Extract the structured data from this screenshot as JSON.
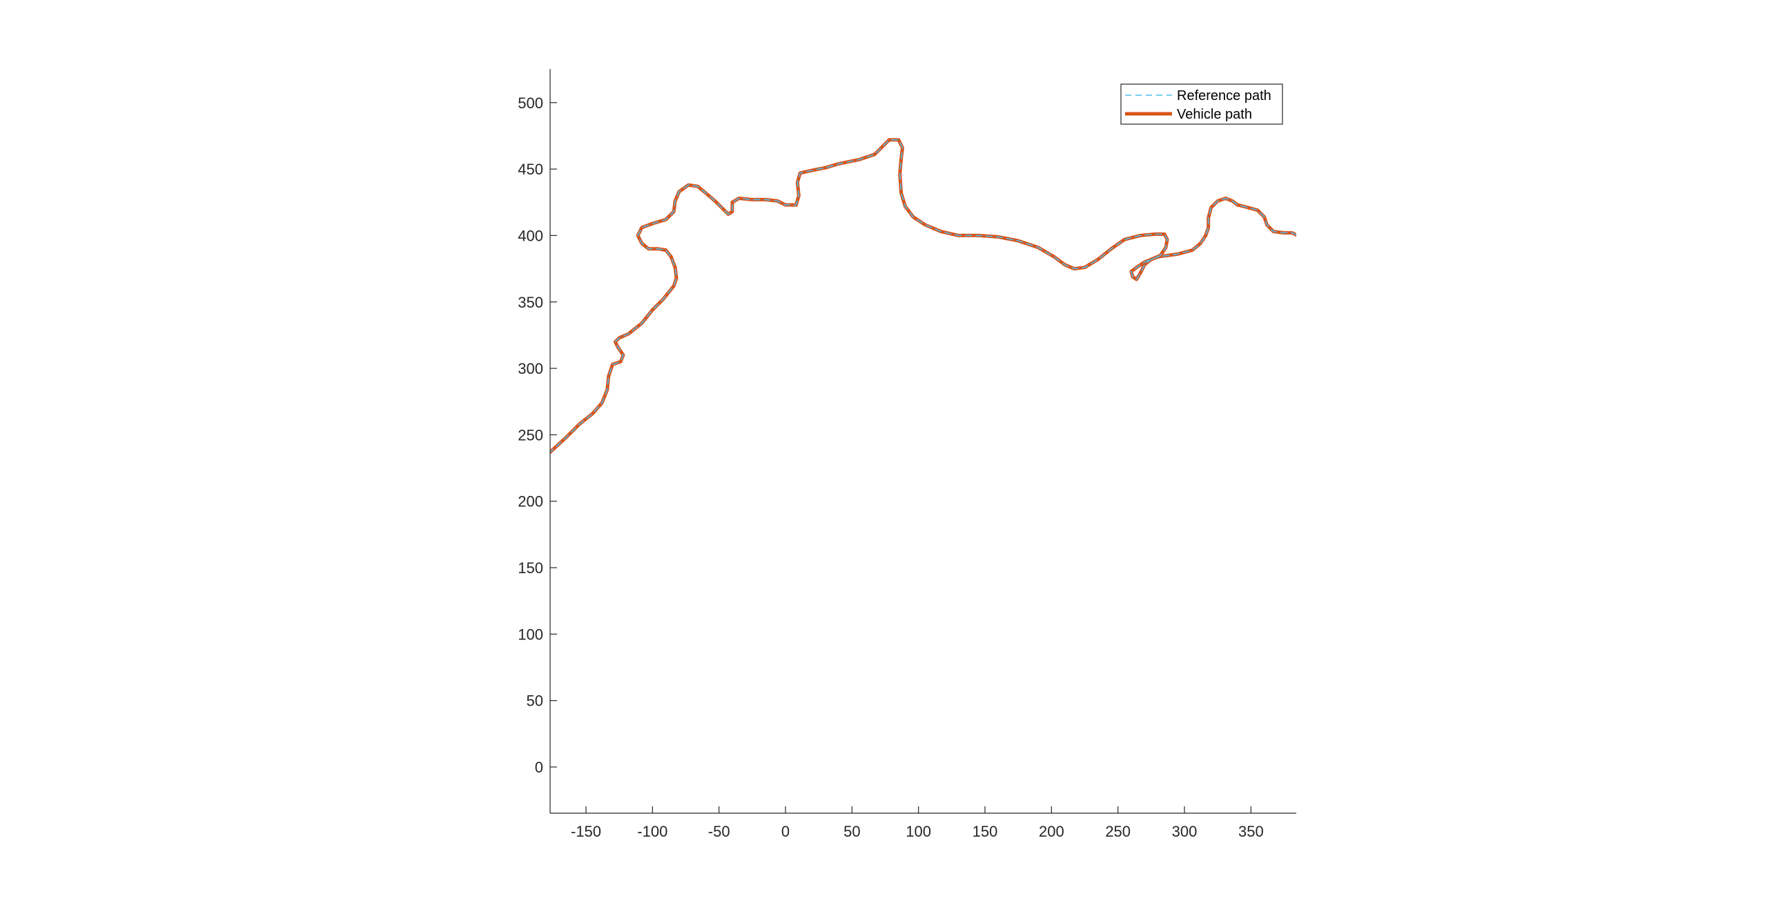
{
  "figure": {
    "background": "#ffffff"
  },
  "chart_data": {
    "type": "line",
    "title": "",
    "xlabel": "",
    "ylabel": "",
    "xlim": [
      -178,
      385
    ],
    "ylim": [
      -36,
      525
    ],
    "xticks": [
      -150,
      -100,
      -50,
      0,
      50,
      100,
      150,
      200,
      250,
      300,
      350
    ],
    "yticks": [
      0,
      50,
      100,
      150,
      200,
      250,
      300,
      350,
      400,
      450,
      500
    ],
    "grid": false,
    "legend_location": "top-right",
    "series": [
      {
        "name": "Reference path",
        "style": "dashed",
        "color": "#4DBEEE",
        "points": [
          [
            -178,
            236
          ],
          [
            -165,
            248
          ],
          [
            -155,
            258
          ],
          [
            -145,
            266
          ],
          [
            -138,
            274
          ],
          [
            -134,
            284
          ],
          [
            -133,
            294
          ],
          [
            -130,
            303
          ],
          [
            -124,
            305
          ],
          [
            -122,
            310
          ],
          [
            -126,
            316
          ],
          [
            -128,
            320
          ],
          [
            -125,
            323
          ],
          [
            -118,
            326
          ],
          [
            -108,
            334
          ],
          [
            -100,
            344
          ],
          [
            -92,
            352
          ],
          [
            -84,
            362
          ],
          [
            -82,
            368
          ],
          [
            -83,
            376
          ],
          [
            -86,
            384
          ],
          [
            -90,
            389
          ],
          [
            -96,
            390
          ],
          [
            -103,
            390
          ],
          [
            -108,
            394
          ],
          [
            -111,
            400
          ],
          [
            -108,
            406
          ],
          [
            -100,
            409
          ],
          [
            -90,
            412
          ],
          [
            -84,
            418
          ],
          [
            -83,
            426
          ],
          [
            -80,
            433
          ],
          [
            -73,
            438
          ],
          [
            -66,
            437
          ],
          [
            -60,
            432
          ],
          [
            -53,
            426
          ],
          [
            -47,
            420
          ],
          [
            -43,
            416
          ],
          [
            -40,
            418
          ],
          [
            -40,
            425
          ],
          [
            -35,
            428
          ],
          [
            -25,
            427
          ],
          [
            -15,
            427
          ],
          [
            -6,
            426
          ],
          [
            0,
            423
          ],
          [
            8,
            423
          ],
          [
            10,
            430
          ],
          [
            9,
            440
          ],
          [
            11,
            447
          ],
          [
            20,
            449
          ],
          [
            30,
            451
          ],
          [
            40,
            454
          ],
          [
            55,
            457
          ],
          [
            67,
            461
          ],
          [
            73,
            467
          ],
          [
            78,
            472
          ],
          [
            85,
            472
          ],
          [
            88,
            466
          ],
          [
            87,
            458
          ],
          [
            86,
            446
          ],
          [
            87,
            432
          ],
          [
            90,
            422
          ],
          [
            96,
            414
          ],
          [
            105,
            408
          ],
          [
            117,
            403
          ],
          [
            130,
            400
          ],
          [
            145,
            400
          ],
          [
            160,
            399
          ],
          [
            175,
            396
          ],
          [
            190,
            391
          ],
          [
            202,
            384
          ],
          [
            210,
            378
          ],
          [
            217,
            375
          ],
          [
            225,
            376
          ],
          [
            235,
            382
          ],
          [
            245,
            390
          ],
          [
            255,
            397
          ],
          [
            267,
            400
          ],
          [
            278,
            401
          ],
          [
            285,
            401
          ],
          [
            287,
            397
          ],
          [
            286,
            391
          ],
          [
            282,
            385
          ],
          [
            275,
            382
          ],
          [
            270,
            378
          ],
          [
            267,
            372
          ],
          [
            264,
            367
          ],
          [
            261,
            369
          ],
          [
            260,
            373
          ],
          [
            264,
            376
          ],
          [
            270,
            380
          ],
          [
            280,
            384
          ],
          [
            295,
            386
          ],
          [
            306,
            389
          ],
          [
            312,
            394
          ],
          [
            316,
            400
          ],
          [
            318,
            406
          ],
          [
            318,
            413
          ],
          [
            320,
            421
          ],
          [
            325,
            426
          ],
          [
            331,
            428
          ],
          [
            336,
            426
          ],
          [
            340,
            423
          ],
          [
            348,
            421
          ],
          [
            355,
            419
          ],
          [
            360,
            414
          ],
          [
            362,
            408
          ],
          [
            367,
            403
          ],
          [
            375,
            402
          ],
          [
            381,
            402
          ],
          [
            385,
            400
          ]
        ]
      },
      {
        "name": "Vehicle path",
        "style": "solid",
        "color": "#D95319",
        "points": [
          [
            -178,
            236
          ],
          [
            -165,
            248
          ],
          [
            -155,
            258
          ],
          [
            -145,
            266
          ],
          [
            -138,
            274
          ],
          [
            -134,
            284
          ],
          [
            -133,
            294
          ],
          [
            -130,
            303
          ],
          [
            -124,
            305
          ],
          [
            -122,
            310
          ],
          [
            -126,
            316
          ],
          [
            -128,
            320
          ],
          [
            -125,
            323
          ],
          [
            -118,
            326
          ],
          [
            -108,
            334
          ],
          [
            -100,
            344
          ],
          [
            -92,
            352
          ],
          [
            -84,
            362
          ],
          [
            -82,
            368
          ],
          [
            -83,
            376
          ],
          [
            -86,
            384
          ],
          [
            -90,
            389
          ],
          [
            -96,
            390
          ],
          [
            -103,
            390
          ],
          [
            -108,
            394
          ],
          [
            -111,
            400
          ],
          [
            -108,
            406
          ],
          [
            -100,
            409
          ],
          [
            -90,
            412
          ],
          [
            -84,
            418
          ],
          [
            -83,
            426
          ],
          [
            -80,
            433
          ],
          [
            -73,
            438
          ],
          [
            -66,
            437
          ],
          [
            -60,
            432
          ],
          [
            -53,
            426
          ],
          [
            -47,
            420
          ],
          [
            -43,
            416
          ],
          [
            -40,
            418
          ],
          [
            -40,
            425
          ],
          [
            -35,
            428
          ],
          [
            -25,
            427
          ],
          [
            -15,
            427
          ],
          [
            -6,
            426
          ],
          [
            0,
            423
          ],
          [
            8,
            423
          ],
          [
            10,
            430
          ],
          [
            9,
            440
          ],
          [
            11,
            447
          ],
          [
            20,
            449
          ],
          [
            30,
            451
          ],
          [
            40,
            454
          ],
          [
            55,
            457
          ],
          [
            67,
            461
          ],
          [
            73,
            467
          ],
          [
            78,
            472
          ],
          [
            85,
            472
          ],
          [
            88,
            466
          ],
          [
            87,
            458
          ],
          [
            86,
            446
          ],
          [
            87,
            432
          ],
          [
            90,
            422
          ],
          [
            96,
            414
          ],
          [
            105,
            408
          ],
          [
            117,
            403
          ],
          [
            130,
            400
          ],
          [
            145,
            400
          ],
          [
            160,
            399
          ],
          [
            175,
            396
          ],
          [
            190,
            391
          ],
          [
            202,
            384
          ],
          [
            210,
            378
          ],
          [
            217,
            375
          ],
          [
            225,
            376
          ],
          [
            235,
            382
          ],
          [
            245,
            390
          ],
          [
            255,
            397
          ],
          [
            267,
            400
          ],
          [
            278,
            401
          ],
          [
            285,
            401
          ],
          [
            287,
            397
          ],
          [
            286,
            391
          ],
          [
            282,
            385
          ],
          [
            275,
            382
          ],
          [
            270,
            378
          ],
          [
            267,
            372
          ],
          [
            264,
            367
          ],
          [
            261,
            369
          ],
          [
            260,
            373
          ],
          [
            264,
            376
          ],
          [
            270,
            380
          ],
          [
            280,
            384
          ],
          [
            295,
            386
          ],
          [
            306,
            389
          ],
          [
            312,
            394
          ],
          [
            316,
            400
          ],
          [
            318,
            406
          ],
          [
            318,
            413
          ],
          [
            320,
            421
          ],
          [
            325,
            426
          ],
          [
            331,
            428
          ],
          [
            336,
            426
          ],
          [
            340,
            423
          ],
          [
            348,
            421
          ],
          [
            355,
            419
          ],
          [
            360,
            414
          ],
          [
            362,
            408
          ],
          [
            367,
            403
          ],
          [
            375,
            402
          ],
          [
            381,
            402
          ],
          [
            385,
            400
          ]
        ]
      }
    ]
  }
}
